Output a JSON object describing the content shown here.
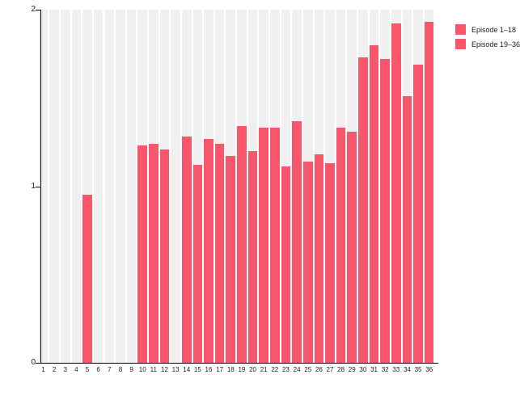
{
  "chart_data": {
    "type": "bar",
    "title": "",
    "xlabel": "",
    "ylabel": "",
    "categories": [
      "1",
      "2",
      "3",
      "4",
      "5",
      "6",
      "7",
      "8",
      "9",
      "10",
      "11",
      "12",
      "13",
      "14",
      "15",
      "16",
      "17",
      "18",
      "19",
      "20",
      "21",
      "22",
      "23",
      "24",
      "25",
      "26",
      "27",
      "28",
      "29",
      "30",
      "31",
      "32",
      "33",
      "34",
      "35",
      "36"
    ],
    "values": [
      0,
      0,
      0,
      0,
      0.95,
      0,
      0,
      0,
      0,
      1.23,
      1.24,
      1.21,
      0,
      1.28,
      1.12,
      1.27,
      1.24,
      1.17,
      1.34,
      1.2,
      1.33,
      1.33,
      1.11,
      1.37,
      1.14,
      1.18,
      1.13,
      1.33,
      1.31,
      1.73,
      1.8,
      1.72,
      1.92,
      1.51,
      1.69,
      1.93
    ],
    "ylim": [
      0,
      2
    ],
    "yticks": [
      "0",
      "1",
      "2"
    ],
    "ytick_values": [
      0,
      1,
      2
    ],
    "grid": "full-height light gray band behind every category",
    "bar_color": "#F8566B",
    "band_color": "#F0F0F0",
    "legend": {
      "position": "top-right (clipped at right edge)",
      "entries": [
        {
          "label": "Episode 1–18",
          "color": "#F8566B"
        },
        {
          "label": "Episode 19–36",
          "color": "#F8566B"
        }
      ]
    }
  }
}
